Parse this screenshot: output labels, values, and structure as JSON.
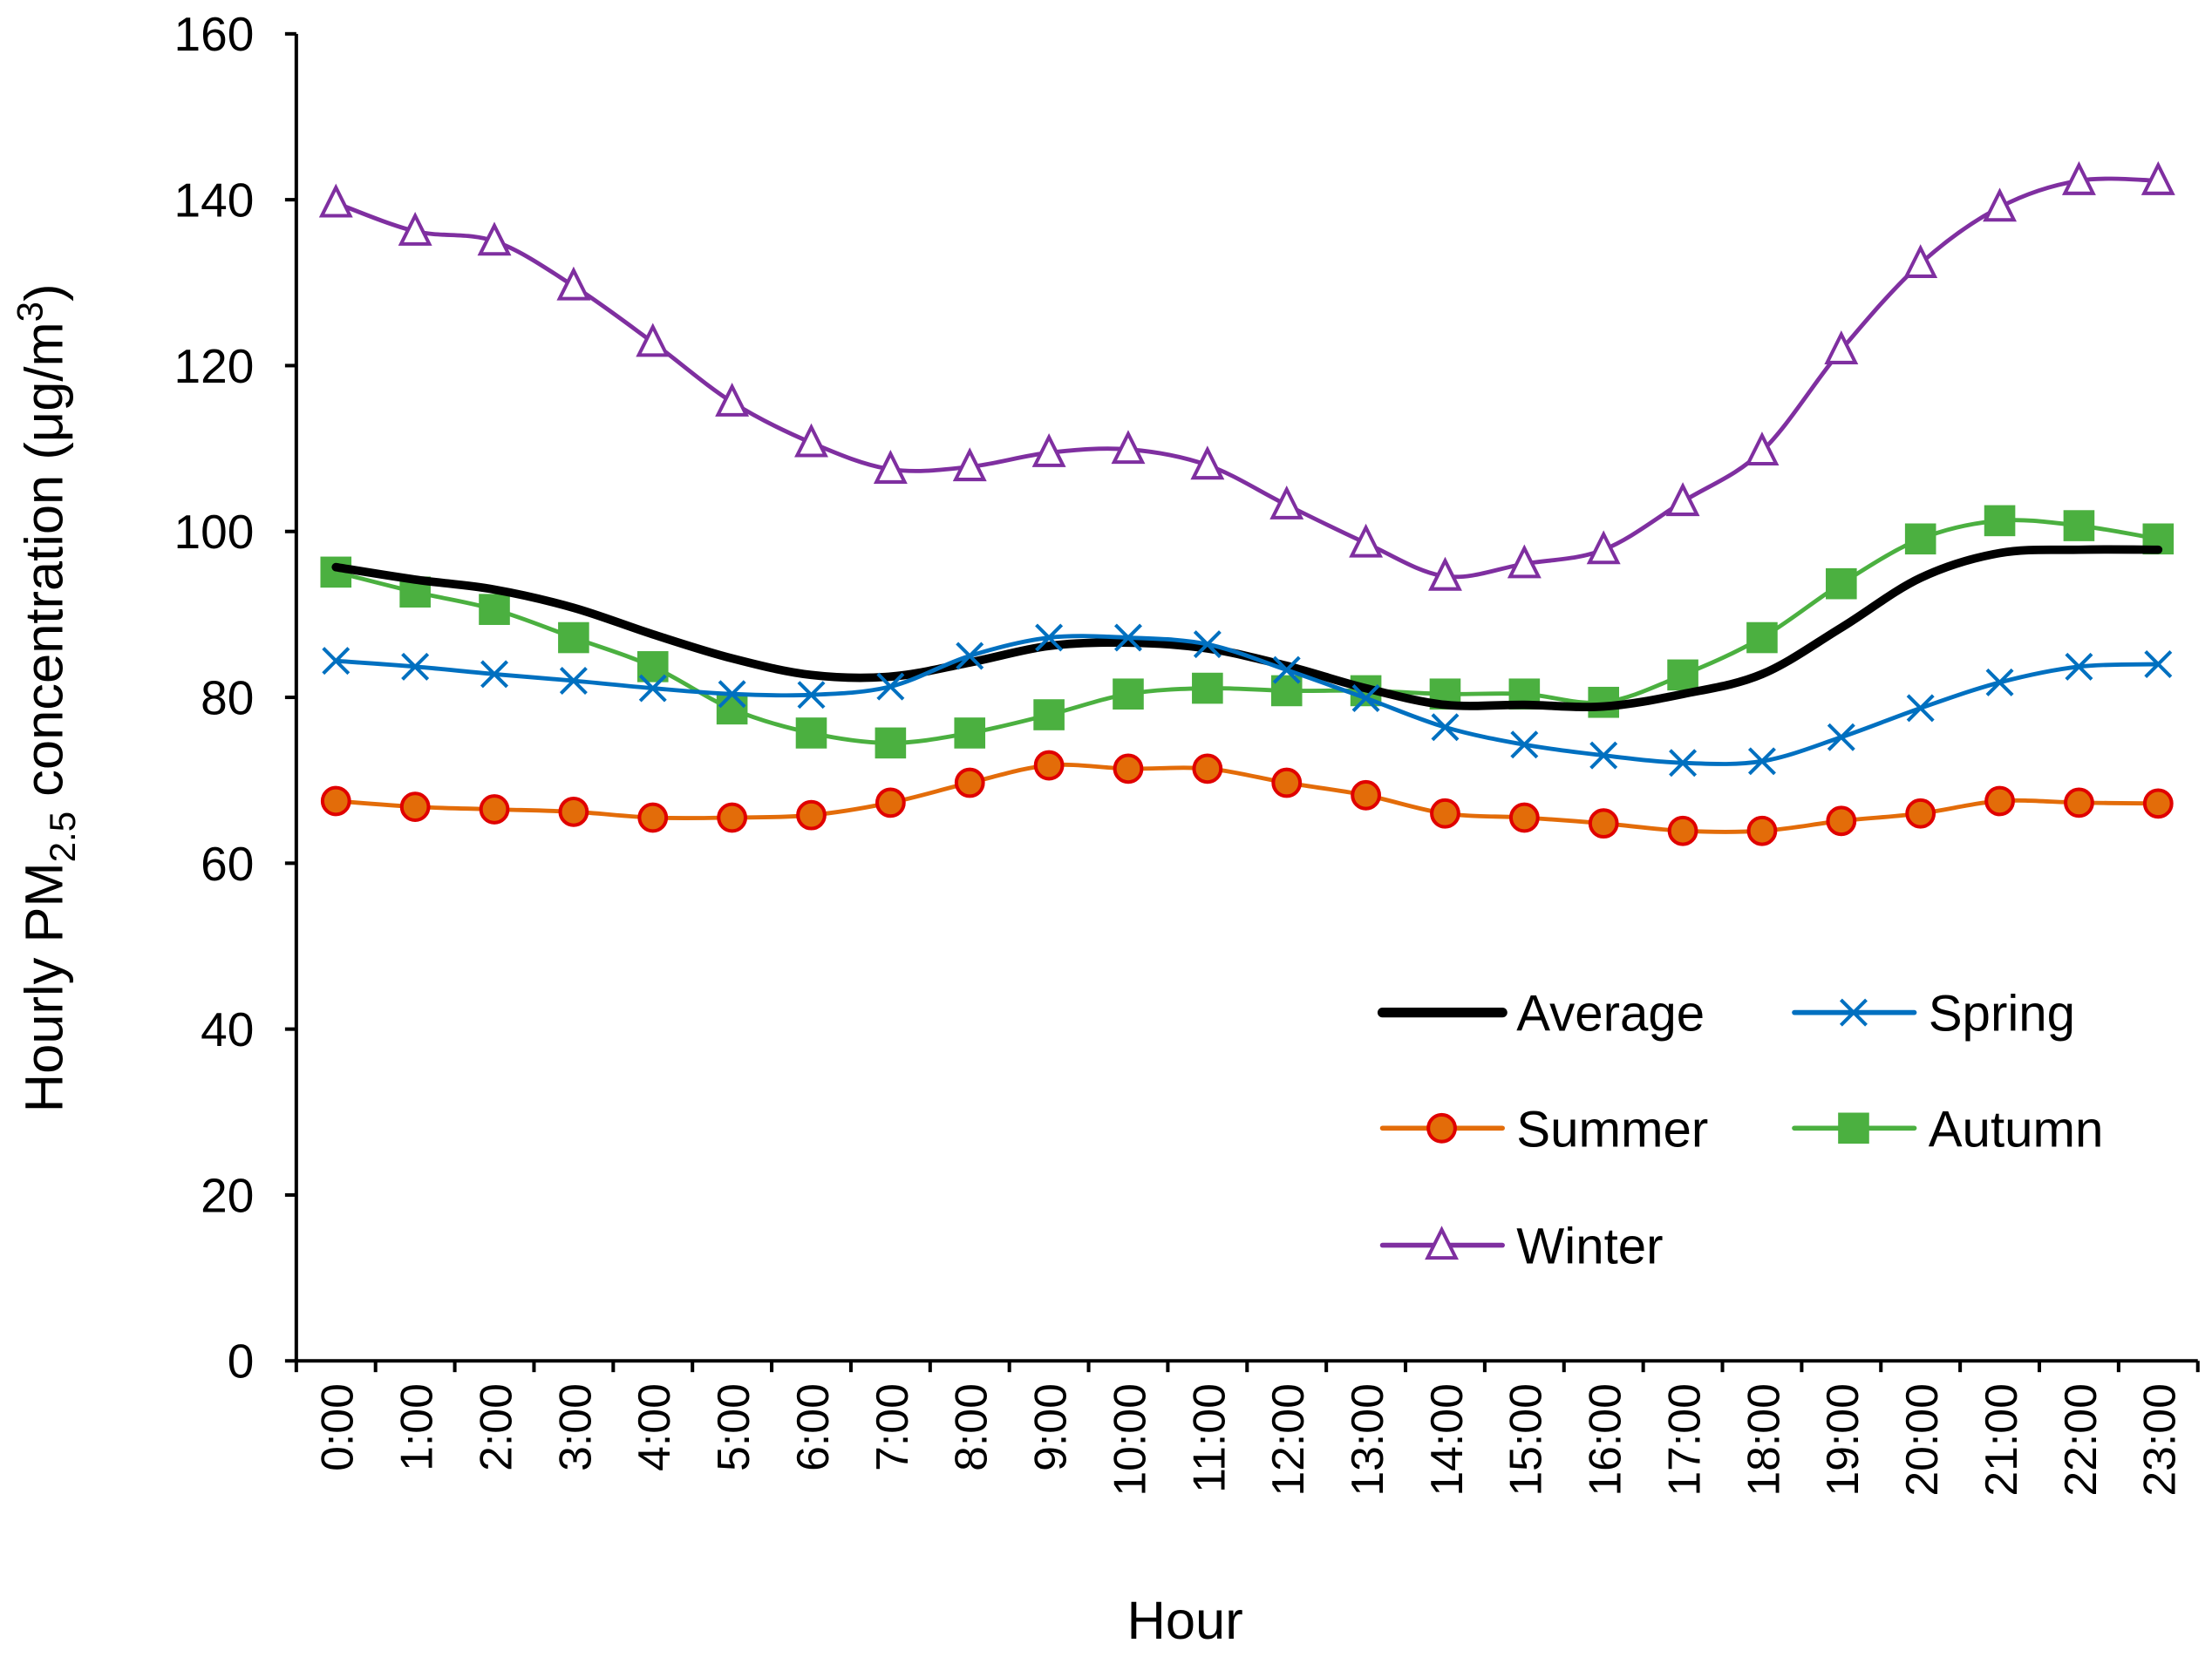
{
  "chart_data": {
    "type": "line",
    "title": "",
    "xlabel": "Hour",
    "ylabel_parts": {
      "pre": "Hourly PM",
      "sub": "2.5",
      "mid": " concentration (μg/m",
      "sup": "3",
      "post": ")"
    },
    "ylim": [
      0,
      160
    ],
    "yticks": [
      0,
      20,
      40,
      60,
      80,
      100,
      120,
      140,
      160
    ],
    "grid": false,
    "legend_placement": "bottom-right",
    "categories": [
      "0:00",
      "1:00",
      "2:00",
      "3:00",
      "4:00",
      "5:00",
      "6:00",
      "7:00",
      "8:00",
      "9:00",
      "10:00",
      "11:00",
      "12:00",
      "13:00",
      "14:00",
      "15:00",
      "16:00",
      "17:00",
      "18:00",
      "19:00",
      "20:00",
      "21:00",
      "22:00",
      "23:00"
    ],
    "series": [
      {
        "name": "Average",
        "color": "#000000",
        "marker": "none",
        "values": [
          95.7,
          94.2,
          93.0,
          90.8,
          87.6,
          84.7,
          82.7,
          82.5,
          84.2,
          86.2,
          86.6,
          85.9,
          83.8,
          81.1,
          79.1,
          79.1,
          78.9,
          80.4,
          82.8,
          88.4,
          94.4,
          97.4,
          97.8,
          97.8
        ]
      },
      {
        "name": "Spring",
        "color": "#0070C0",
        "marker": "x",
        "values": [
          84.4,
          83.7,
          82.8,
          82.0,
          81.1,
          80.4,
          80.3,
          81.3,
          85.0,
          87.2,
          87.2,
          86.4,
          83.3,
          79.9,
          76.4,
          74.3,
          73.0,
          72.1,
          72.3,
          75.2,
          78.7,
          81.8,
          83.7,
          84.0
        ]
      },
      {
        "name": "Summer",
        "color": "#E36C09",
        "marker_stroke": "#E00000",
        "marker": "circle",
        "values": [
          67.5,
          66.8,
          66.5,
          66.2,
          65.5,
          65.5,
          65.8,
          67.3,
          69.7,
          71.8,
          71.4,
          71.4,
          69.7,
          68.2,
          66.0,
          65.5,
          64.8,
          63.9,
          63.9,
          65.1,
          66.0,
          67.5,
          67.3,
          67.2
        ]
      },
      {
        "name": "Autumn",
        "color": "#4BB040",
        "marker": "square",
        "values": [
          95.1,
          92.7,
          90.6,
          87.2,
          83.7,
          78.6,
          75.7,
          74.5,
          75.7,
          77.9,
          80.4,
          81.1,
          80.8,
          80.8,
          80.4,
          80.4,
          79.4,
          82.7,
          87.2,
          93.7,
          99.1,
          101.3,
          100.7,
          99.1
        ]
      },
      {
        "name": "Winter",
        "color": "#7F2FA0",
        "marker": "triangle",
        "values": [
          139.6,
          136.2,
          135.0,
          129.6,
          122.8,
          115.6,
          110.7,
          107.5,
          107.8,
          109.5,
          109.9,
          108.0,
          103.2,
          98.6,
          94.6,
          96.1,
          97.8,
          103.6,
          109.7,
          121.9,
          132.3,
          139.1,
          142.3,
          142.3
        ]
      }
    ]
  }
}
